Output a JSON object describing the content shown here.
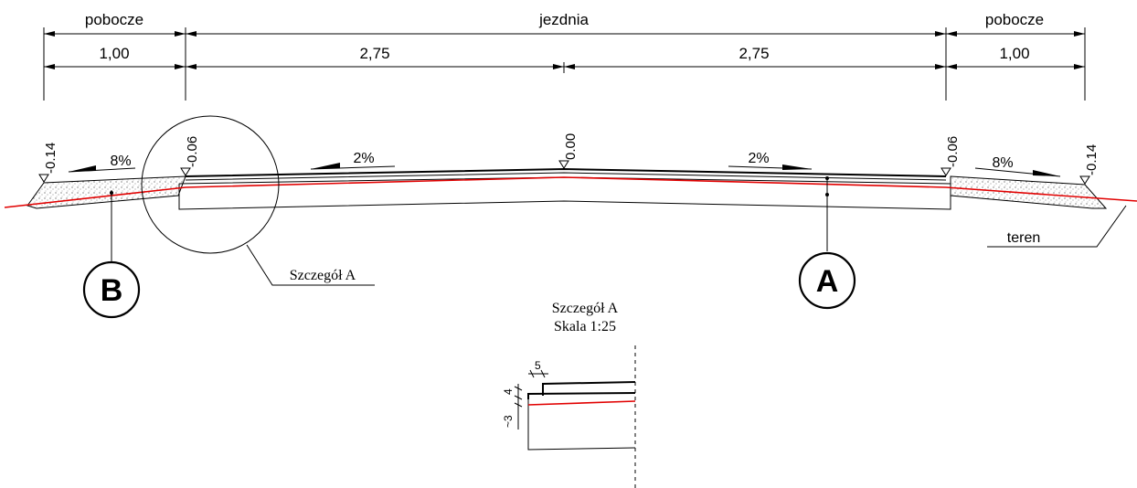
{
  "dimensions": {
    "top_left": "pobocze",
    "top_center": "jezdnia",
    "top_right": "pobocze",
    "left_shoulder": "1,00",
    "left_lane": "2,75",
    "right_lane": "2,75",
    "right_shoulder": "1,00"
  },
  "levels": {
    "left_edge": "-0.14",
    "left_road_edge": "-0.06",
    "axis": "0.00",
    "right_road_edge": "-0.06",
    "right_edge": "-0.14"
  },
  "slopes": {
    "left_shoulder": "8%",
    "left_lane": "2%",
    "right_lane": "2%",
    "right_shoulder": "8%"
  },
  "labels": {
    "terrain": "teren",
    "detail_callout": "Szczegół A",
    "marker_b": "B",
    "marker_a": "A"
  },
  "detail": {
    "title": "Szczegół A",
    "scale": "Skala 1:25",
    "dim_5": "5",
    "dim_4": "4",
    "dim_3": "~3"
  },
  "colors": {
    "line": "#000000",
    "subgrade": "#e10000"
  }
}
